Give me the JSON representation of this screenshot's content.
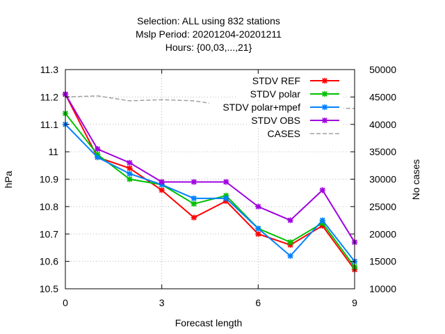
{
  "chart_data": {
    "type": "line",
    "title_lines": [
      "Selection: ALL using   832 stations",
      "Mslp   Period: 20201204-20201211",
      "Hours: {00,03,...,21}"
    ],
    "xlabel": "Forecast length",
    "ylabel": "hPa",
    "y2label": "No cases",
    "x": [
      0,
      1,
      2,
      3,
      4,
      5,
      6,
      7,
      8,
      9
    ],
    "xlim": [
      0,
      9
    ],
    "xticks": [
      0,
      3,
      6,
      9
    ],
    "ylim": [
      10.5,
      11.3
    ],
    "yticks": [
      10.5,
      10.6,
      10.7,
      10.8,
      10.9,
      11,
      11.1,
      11.2,
      11.3
    ],
    "y2lim": [
      10000,
      50000
    ],
    "y2ticks": [
      10000,
      15000,
      20000,
      25000,
      30000,
      35000,
      40000,
      45000,
      50000
    ],
    "grid": true,
    "legend_position": "top-right",
    "series": [
      {
        "name": "STDV REF",
        "color": "#ff0000",
        "values": [
          11.21,
          10.98,
          10.94,
          10.86,
          10.76,
          10.82,
          10.7,
          10.66,
          10.73,
          10.57
        ]
      },
      {
        "name": "STDV polar",
        "color": "#00c000",
        "values": [
          11.14,
          10.99,
          10.9,
          10.88,
          10.81,
          10.84,
          10.72,
          10.67,
          10.74,
          10.58
        ]
      },
      {
        "name": "STDV polar+mpef",
        "color": "#0080ff",
        "values": [
          11.1,
          10.98,
          10.92,
          10.88,
          10.83,
          10.83,
          10.72,
          10.62,
          10.75,
          10.6
        ]
      },
      {
        "name": "STDV OBS",
        "color": "#a000e0",
        "values": [
          11.21,
          11.01,
          10.96,
          10.89,
          10.89,
          10.89,
          10.8,
          10.75,
          10.86,
          10.67
        ]
      },
      {
        "name": "CASES",
        "color": "#a0a0a0",
        "dashed": true,
        "axis": "y2",
        "values": [
          45000,
          45200,
          44300,
          44500,
          44300,
          43400,
          43300,
          43100,
          43000,
          42900
        ]
      }
    ]
  }
}
